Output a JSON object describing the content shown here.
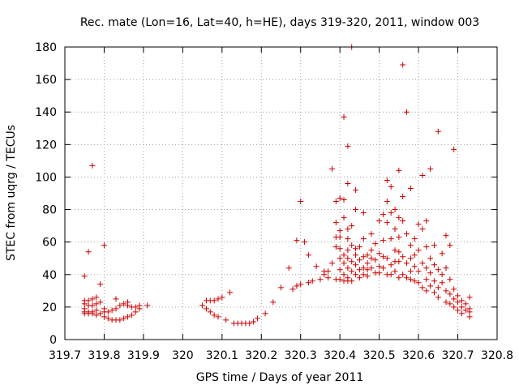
{
  "chart_data": {
    "type": "scatter",
    "title": "Rec. mate (Lon=16, Lat=40, h=HE), days 319-320, 2011, window 003",
    "xlabel": "GPS time / Days of year 2011",
    "ylabel": "STEC from uqrg / TECUs",
    "xlim": [
      319.7,
      320.8
    ],
    "ylim": [
      0,
      180
    ],
    "xticks": [
      "319.7",
      "319.8",
      "319.9",
      "320",
      "320.1",
      "320.2",
      "320.3",
      "320.4",
      "320.5",
      "320.6",
      "320.7",
      "320.8"
    ],
    "yticks": [
      "0",
      "20",
      "40",
      "60",
      "80",
      "100",
      "120",
      "140",
      "160",
      "180"
    ],
    "grid": true,
    "marker": "plus",
    "color": "#cc0000",
    "points": [
      [
        319.75,
        39
      ],
      [
        319.75,
        24
      ],
      [
        319.75,
        22
      ],
      [
        319.75,
        19
      ],
      [
        319.75,
        17
      ],
      [
        319.75,
        16
      ],
      [
        319.76,
        54
      ],
      [
        319.76,
        24
      ],
      [
        319.76,
        21
      ],
      [
        319.76,
        17
      ],
      [
        319.76,
        16
      ],
      [
        319.77,
        107
      ],
      [
        319.77,
        25
      ],
      [
        319.77,
        21
      ],
      [
        319.77,
        17
      ],
      [
        319.77,
        16
      ],
      [
        319.78,
        26
      ],
      [
        319.78,
        22
      ],
      [
        319.78,
        18
      ],
      [
        319.78,
        15
      ],
      [
        319.79,
        34
      ],
      [
        319.79,
        23
      ],
      [
        319.79,
        16
      ],
      [
        319.8,
        58
      ],
      [
        319.8,
        19
      ],
      [
        319.8,
        17
      ],
      [
        319.8,
        14
      ],
      [
        319.81,
        17
      ],
      [
        319.81,
        13
      ],
      [
        319.82,
        18
      ],
      [
        319.82,
        12
      ],
      [
        319.83,
        25
      ],
      [
        319.83,
        19
      ],
      [
        319.83,
        12
      ],
      [
        319.84,
        21
      ],
      [
        319.84,
        12
      ],
      [
        319.85,
        22
      ],
      [
        319.85,
        13
      ],
      [
        319.86,
        23
      ],
      [
        319.86,
        21
      ],
      [
        319.86,
        14
      ],
      [
        319.87,
        20
      ],
      [
        319.87,
        15
      ],
      [
        319.88,
        20
      ],
      [
        319.88,
        17
      ],
      [
        319.89,
        21
      ],
      [
        319.89,
        19
      ],
      [
        319.91,
        21
      ],
      [
        320.05,
        21
      ],
      [
        320.06,
        24
      ],
      [
        320.06,
        19
      ],
      [
        320.07,
        24
      ],
      [
        320.07,
        17
      ],
      [
        320.08,
        24
      ],
      [
        320.08,
        15
      ],
      [
        320.09,
        25
      ],
      [
        320.09,
        14
      ],
      [
        320.1,
        26
      ],
      [
        320.11,
        12
      ],
      [
        320.12,
        29
      ],
      [
        320.13,
        10
      ],
      [
        320.14,
        10
      ],
      [
        320.15,
        10
      ],
      [
        320.16,
        10
      ],
      [
        320.17,
        10
      ],
      [
        320.18,
        11
      ],
      [
        320.19,
        13
      ],
      [
        320.21,
        16
      ],
      [
        320.23,
        23
      ],
      [
        320.25,
        32
      ],
      [
        320.27,
        44
      ],
      [
        320.28,
        31
      ],
      [
        320.29,
        61
      ],
      [
        320.29,
        33
      ],
      [
        320.3,
        85
      ],
      [
        320.3,
        34
      ],
      [
        320.31,
        60
      ],
      [
        320.32,
        52
      ],
      [
        320.32,
        35
      ],
      [
        320.33,
        36
      ],
      [
        320.34,
        45
      ],
      [
        320.35,
        37
      ],
      [
        320.36,
        40
      ],
      [
        320.36,
        42
      ],
      [
        320.37,
        42
      ],
      [
        320.37,
        38
      ],
      [
        320.38,
        47
      ],
      [
        320.38,
        105
      ],
      [
        320.39,
        85
      ],
      [
        320.39,
        72
      ],
      [
        320.39,
        63
      ],
      [
        320.39,
        57
      ],
      [
        320.39,
        37
      ],
      [
        320.4,
        87
      ],
      [
        320.4,
        67
      ],
      [
        320.4,
        63
      ],
      [
        320.4,
        56
      ],
      [
        320.4,
        50
      ],
      [
        320.4,
        43
      ],
      [
        320.4,
        37
      ],
      [
        320.41,
        137
      ],
      [
        320.41,
        86
      ],
      [
        320.41,
        75
      ],
      [
        320.41,
        52
      ],
      [
        320.41,
        47
      ],
      [
        320.41,
        40
      ],
      [
        320.41,
        36
      ],
      [
        320.42,
        119
      ],
      [
        320.42,
        96
      ],
      [
        320.42,
        68
      ],
      [
        320.42,
        62
      ],
      [
        320.42,
        55
      ],
      [
        320.42,
        50
      ],
      [
        320.42,
        44
      ],
      [
        320.42,
        38
      ],
      [
        320.42,
        36
      ],
      [
        320.43,
        180
      ],
      [
        320.43,
        70
      ],
      [
        320.43,
        58
      ],
      [
        320.43,
        48
      ],
      [
        320.43,
        42
      ],
      [
        320.43,
        36
      ],
      [
        320.44,
        92
      ],
      [
        320.44,
        80
      ],
      [
        320.44,
        56
      ],
      [
        320.44,
        52
      ],
      [
        320.44,
        46
      ],
      [
        320.44,
        40
      ],
      [
        320.45,
        57
      ],
      [
        320.45,
        49
      ],
      [
        320.45,
        43
      ],
      [
        320.45,
        38
      ],
      [
        320.46,
        78
      ],
      [
        320.46,
        62
      ],
      [
        320.46,
        51
      ],
      [
        320.46,
        44
      ],
      [
        320.46,
        40
      ],
      [
        320.47,
        52
      ],
      [
        320.47,
        47
      ],
      [
        320.47,
        43
      ],
      [
        320.47,
        39
      ],
      [
        320.48,
        65
      ],
      [
        320.48,
        55
      ],
      [
        320.48,
        50
      ],
      [
        320.48,
        44
      ],
      [
        320.49,
        59
      ],
      [
        320.49,
        49
      ],
      [
        320.49,
        41
      ],
      [
        320.5,
        73
      ],
      [
        320.5,
        53
      ],
      [
        320.5,
        45
      ],
      [
        320.5,
        41
      ],
      [
        320.51,
        77
      ],
      [
        320.51,
        61
      ],
      [
        320.51,
        51
      ],
      [
        320.51,
        44
      ],
      [
        320.52,
        98
      ],
      [
        320.52,
        85
      ],
      [
        320.52,
        72
      ],
      [
        320.52,
        50
      ],
      [
        320.52,
        40
      ],
      [
        320.53,
        94
      ],
      [
        320.53,
        78
      ],
      [
        320.53,
        62
      ],
      [
        320.53,
        46
      ],
      [
        320.53,
        40
      ],
      [
        320.54,
        80
      ],
      [
        320.54,
        68
      ],
      [
        320.54,
        55
      ],
      [
        320.54,
        48
      ],
      [
        320.54,
        42
      ],
      [
        320.55,
        104
      ],
      [
        320.55,
        75
      ],
      [
        320.55,
        63
      ],
      [
        320.55,
        54
      ],
      [
        320.55,
        48
      ],
      [
        320.55,
        38
      ],
      [
        320.56,
        169
      ],
      [
        320.56,
        88
      ],
      [
        320.56,
        73
      ],
      [
        320.56,
        51
      ],
      [
        320.56,
        40
      ],
      [
        320.57,
        140
      ],
      [
        320.57,
        65
      ],
      [
        320.57,
        47
      ],
      [
        320.57,
        38
      ],
      [
        320.58,
        93
      ],
      [
        320.58,
        58
      ],
      [
        320.58,
        50
      ],
      [
        320.58,
        42
      ],
      [
        320.58,
        37
      ],
      [
        320.59,
        62
      ],
      [
        320.59,
        52
      ],
      [
        320.59,
        45
      ],
      [
        320.59,
        36
      ],
      [
        320.6,
        71
      ],
      [
        320.6,
        55
      ],
      [
        320.6,
        42
      ],
      [
        320.6,
        35
      ],
      [
        320.61,
        101
      ],
      [
        320.61,
        68
      ],
      [
        320.61,
        47
      ],
      [
        320.61,
        32
      ],
      [
        320.62,
        73
      ],
      [
        320.62,
        57
      ],
      [
        320.62,
        44
      ],
      [
        320.62,
        37
      ],
      [
        320.62,
        30
      ],
      [
        320.63,
        105
      ],
      [
        320.63,
        50
      ],
      [
        320.63,
        41
      ],
      [
        320.63,
        33
      ],
      [
        320.64,
        58
      ],
      [
        320.64,
        46
      ],
      [
        320.64,
        36
      ],
      [
        320.64,
        29
      ],
      [
        320.65,
        128
      ],
      [
        320.65,
        43
      ],
      [
        320.65,
        32
      ],
      [
        320.65,
        26
      ],
      [
        320.66,
        53
      ],
      [
        320.66,
        40
      ],
      [
        320.66,
        35
      ],
      [
        320.67,
        64
      ],
      [
        320.67,
        44
      ],
      [
        320.67,
        30
      ],
      [
        320.67,
        23
      ],
      [
        320.68,
        58
      ],
      [
        320.68,
        37
      ],
      [
        320.68,
        28
      ],
      [
        320.68,
        22
      ],
      [
        320.69,
        117
      ],
      [
        320.69,
        31
      ],
      [
        320.69,
        25
      ],
      [
        320.69,
        20
      ],
      [
        320.7,
        27
      ],
      [
        320.7,
        23
      ],
      [
        320.7,
        18
      ],
      [
        320.71,
        24
      ],
      [
        320.71,
        20
      ],
      [
        320.71,
        16
      ],
      [
        320.72,
        22
      ],
      [
        320.72,
        18
      ],
      [
        320.73,
        26
      ],
      [
        320.73,
        19
      ],
      [
        320.73,
        17
      ],
      [
        320.73,
        14
      ]
    ]
  }
}
